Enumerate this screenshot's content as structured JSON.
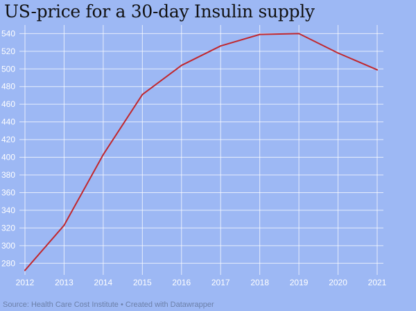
{
  "chart_data": {
    "type": "line",
    "title": "US-price for a 30-day Insulin supply",
    "xlabel": "",
    "ylabel": "",
    "x": [
      "2012",
      "2013",
      "2014",
      "2015",
      "2016",
      "2017",
      "2018",
      "2019",
      "2020",
      "2021"
    ],
    "series": [
      {
        "values": [
          272,
          323,
          403,
          471,
          504,
          526,
          539,
          540,
          518,
          499
        ]
      }
    ],
    "ylim": [
      270,
      545
    ],
    "yticks": [
      280,
      300,
      320,
      340,
      360,
      380,
      400,
      420,
      440,
      460,
      480,
      500,
      520,
      540
    ],
    "grid": true,
    "line_color": "#c1272d"
  },
  "footer": "Source: Health Care Cost Institute • Created with Datawrapper"
}
